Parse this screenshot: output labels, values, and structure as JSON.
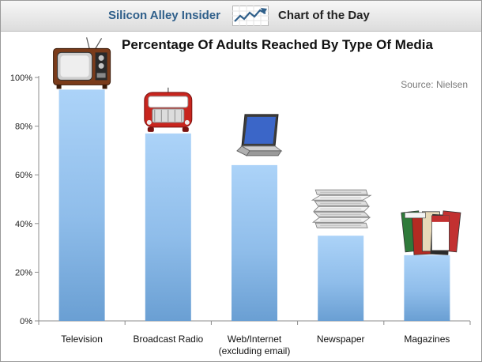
{
  "header": {
    "brand": "Silicon Alley Insider",
    "logo_icon": "line-chart-up-icon",
    "label": "Chart of the Day"
  },
  "colors": {
    "bar_top": "#a9d1f7",
    "bar_bottom": "#6a9fd3",
    "brand": "#2f5f8a",
    "axis": "#8c8c8c"
  },
  "chart_data": {
    "type": "bar",
    "title": "Percentage Of Adults Reached By Type Of Media",
    "source": "Source: Nielsen",
    "categories": [
      "Television",
      "Broadcast Radio",
      "Web/Internet (excluding email)",
      "Newspaper",
      "Magazines"
    ],
    "category_lines": [
      [
        "Television"
      ],
      [
        "Broadcast Radio"
      ],
      [
        "Web/Internet",
        "(excluding email)"
      ],
      [
        "Newspaper"
      ],
      [
        "Magazines"
      ]
    ],
    "icons": [
      "television-icon",
      "radio-icon",
      "laptop-icon",
      "newspaper-stack-icon",
      "magazine-stack-icon"
    ],
    "values": [
      95,
      77,
      64,
      35,
      27
    ],
    "ylim": [
      0,
      100
    ],
    "yticks": [
      0,
      20,
      40,
      60,
      80,
      100
    ],
    "ytick_labels": [
      "0%",
      "20%",
      "40%",
      "60%",
      "80%",
      "100%"
    ],
    "xlabel": "",
    "ylabel": "",
    "grid": false,
    "legend": "none"
  }
}
